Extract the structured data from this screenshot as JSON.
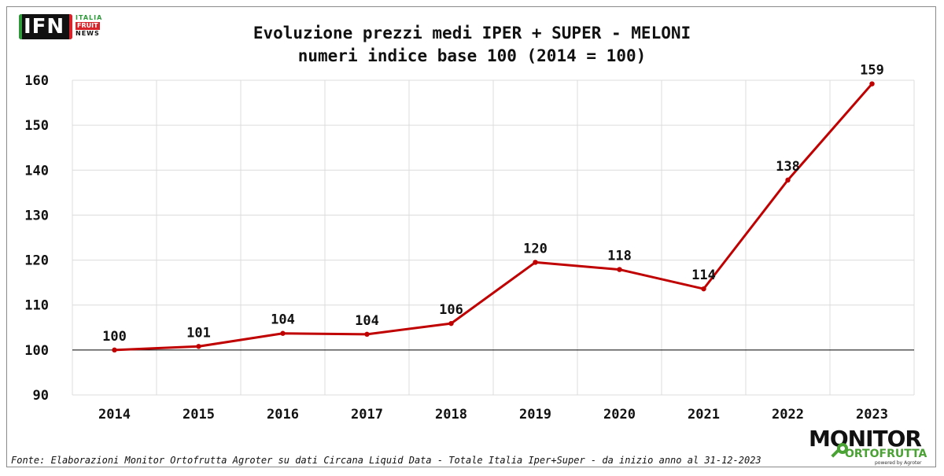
{
  "header": {
    "logo": {
      "letters": "IFN",
      "line1": "ITALIA",
      "line2": "FRUIT",
      "line3": "NEWS"
    },
    "title_line1": "Evoluzione prezzi medi IPER + SUPER - MELONI",
    "title_line2": "numeri indice base 100 (2014 = 100)"
  },
  "chart_data": {
    "type": "line",
    "title": "Evoluzione prezzi medi IPER + SUPER - MELONI",
    "subtitle": "numeri indice base 100 (2014 = 100)",
    "categories": [
      "2014",
      "2015",
      "2016",
      "2017",
      "2018",
      "2019",
      "2020",
      "2021",
      "2022",
      "2023"
    ],
    "values": [
      100,
      100.8,
      103.7,
      103.5,
      105.9,
      119.5,
      117.9,
      113.6,
      137.8,
      159.2
    ],
    "data_labels": [
      "100",
      "101",
      "104",
      "104",
      "106",
      "120",
      "118",
      "114",
      "138",
      "159"
    ],
    "ylim": [
      90,
      160
    ],
    "yticks": [
      "90",
      "100",
      "110",
      "120",
      "130",
      "140",
      "150",
      "160"
    ],
    "reference_line": 100,
    "grid": true,
    "line_color": "#c00000"
  },
  "footer": {
    "source": "Fonte: Elaborazioni Monitor Ortofrutta Agroter su dati Circana Liquid Data - Totale Italia Iper+Super -  da inizio anno al 31-12-2023",
    "brand_main": "MONITOR",
    "brand_sub": "ORTOFRUTTA",
    "brand_tiny": "powered by Agroter"
  }
}
